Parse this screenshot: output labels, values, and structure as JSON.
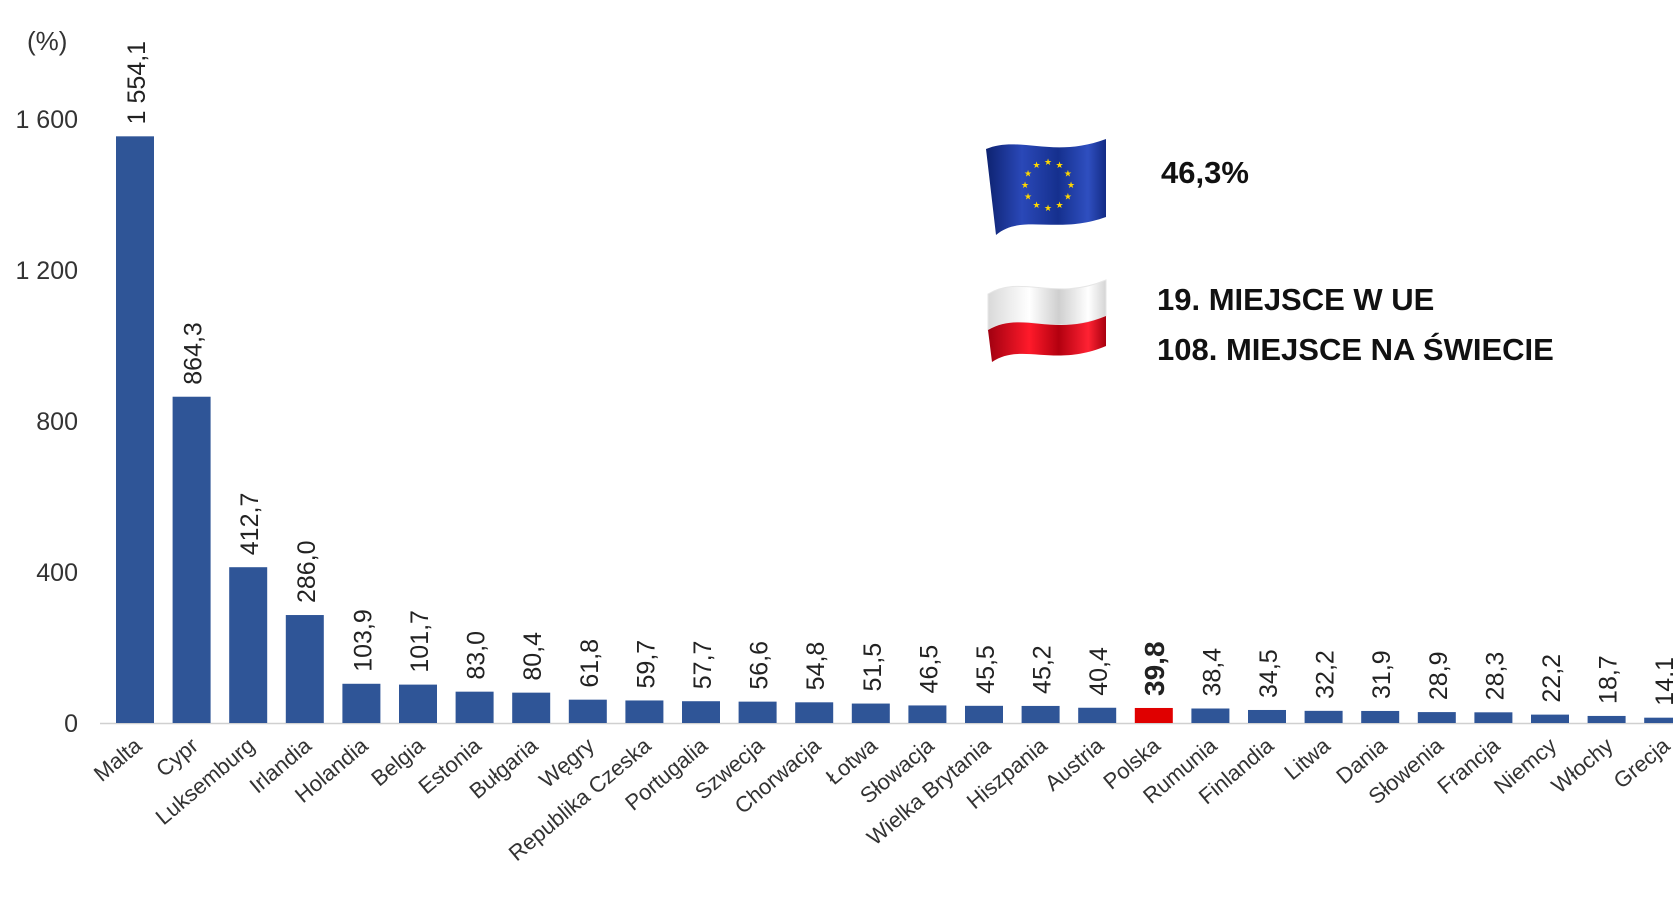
{
  "chart_data": {
    "type": "bar",
    "ylabel": "(%)",
    "ylim": [
      0,
      1600
    ],
    "yticks": [
      0,
      400,
      800,
      1200,
      1600
    ],
    "ytick_labels": [
      "0",
      "400",
      "800",
      "1 200",
      "1 600"
    ],
    "categories": [
      "Malta",
      "Cypr",
      "Luksemburg",
      "Irlandia",
      "Holandia",
      "Belgia",
      "Estonia",
      "Bułgaria",
      "Węgry",
      "Republika Czeska",
      "Portugalia",
      "Szwecja",
      "Chorwacja",
      "Łotwa",
      "Słowacja",
      "Wielka Brytania",
      "Hiszpania",
      "Austria",
      "Polska",
      "Rumunia",
      "Finlandia",
      "Litwa",
      "Dania",
      "Słowenia",
      "Francja",
      "Niemcy",
      "Włochy",
      "Grecja"
    ],
    "values": [
      1554.1,
      864.3,
      412.7,
      286.0,
      103.9,
      101.7,
      83.0,
      80.4,
      61.8,
      59.7,
      57.7,
      56.6,
      54.8,
      51.5,
      46.5,
      45.5,
      45.2,
      40.4,
      39.8,
      38.4,
      34.5,
      32.2,
      31.9,
      28.9,
      28.3,
      22.2,
      18.7,
      14.1
    ],
    "value_labels": [
      "1 554,1",
      "864,3",
      "412,7",
      "286,0",
      "103,9",
      "101,7",
      "83,0",
      "80,4",
      "61,8",
      "59,7",
      "57,7",
      "56,6",
      "54,8",
      "51,5",
      "46,5",
      "45,5",
      "45,2",
      "40,4",
      "39,8",
      "38,4",
      "34,5",
      "32,2",
      "31,9",
      "28,9",
      "28,3",
      "22,2",
      "18,7",
      "14,1"
    ],
    "highlight_category": "Polska",
    "bar_color": "#2F5597",
    "highlight_color": "#E00000",
    "grid": false,
    "legend": "none"
  },
  "annotations": {
    "eu_value": "46,3%",
    "pl_rank_eu": "19. MIEJSCE W UE",
    "pl_rank_world": "108. MIEJSCE NA ŚWIECIE",
    "eu_flag_icon": "eu-flag-icon",
    "pl_flag_icon": "poland-flag-icon",
    "eu_flag_color": "#1F3A9A",
    "eu_star_color": "#FFD700",
    "pl_white": "#FFFFFF",
    "pl_red": "#E3001B"
  }
}
